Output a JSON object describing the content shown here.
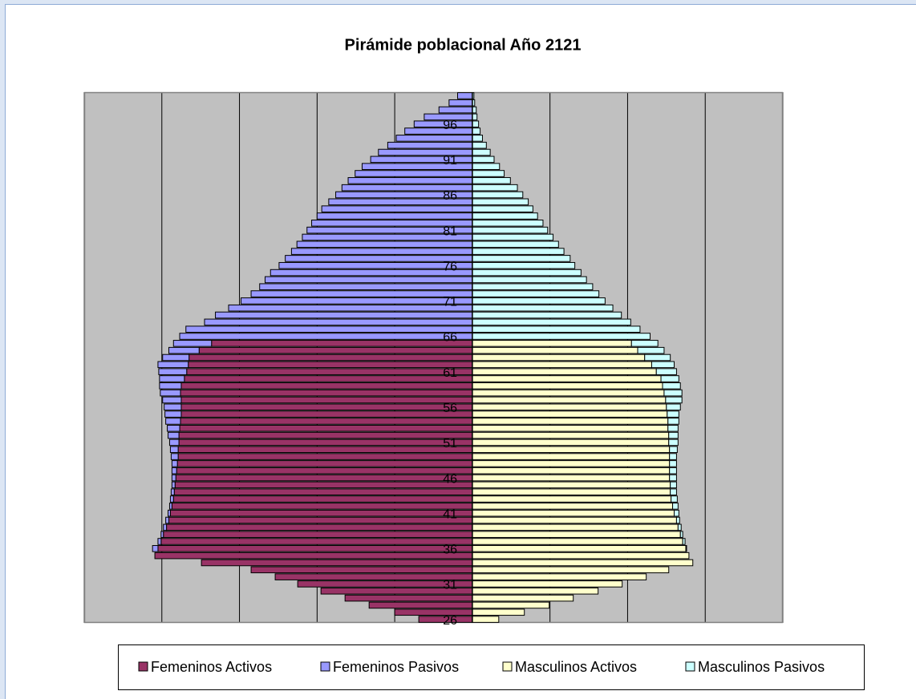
{
  "chart_data": {
    "type": "pyramid",
    "title": "Pirámide poblacional Año 2121",
    "categories": [
      "26",
      null,
      null,
      null,
      null,
      "31",
      null,
      null,
      null,
      null,
      "36",
      null,
      null,
      null,
      null,
      "41",
      null,
      null,
      null,
      null,
      "46",
      null,
      null,
      null,
      null,
      "51",
      null,
      null,
      null,
      null,
      "56",
      null,
      null,
      null,
      null,
      "61",
      null,
      null,
      null,
      null,
      "66",
      null,
      null,
      null,
      null,
      "71",
      null,
      null,
      null,
      null,
      "76",
      null,
      null,
      null,
      null,
      "81",
      null,
      null,
      null,
      null,
      "86",
      null,
      null,
      null,
      null,
      "91",
      null,
      null,
      null,
      null,
      "96",
      null,
      null,
      null,
      null
    ],
    "series": [
      {
        "name": "Femeninos Activos",
        "color": "#993366",
        "values": [
          -69,
          -100,
          -133,
          -164,
          -195,
          -225,
          -254,
          -285,
          -349,
          -409,
          -405,
          -401,
          -398,
          -394,
          -391,
          -389,
          -387,
          -385,
          -384,
          -383,
          -382,
          -381,
          -380,
          -379,
          -379,
          -378,
          -378,
          -377,
          -376,
          -375,
          -375,
          -375,
          -376,
          -375,
          -371,
          -368,
          -366,
          -365,
          -352,
          -336,
          0,
          0,
          0,
          0,
          0,
          0,
          0,
          0,
          0,
          0,
          0,
          0,
          0,
          0,
          0,
          0,
          0,
          0,
          0,
          0,
          0,
          0,
          0,
          0,
          0,
          0,
          0,
          0,
          0,
          0,
          0,
          0,
          0,
          0,
          0
        ]
      },
      {
        "name": "Femeninos Pasivos",
        "color": "#9999ff",
        "values": [
          0,
          0,
          0,
          0,
          0,
          0,
          0,
          0,
          0,
          0,
          -7,
          -4,
          -3,
          -4,
          -4,
          -3,
          -3,
          -4,
          -4,
          -4,
          -5,
          -6,
          -7,
          -9,
          -10,
          -12,
          -14,
          -16,
          -19,
          -21,
          -22,
          -24,
          -26,
          -28,
          -32,
          -36,
          -39,
          -34,
          -39,
          -49,
          -377,
          -369,
          -345,
          -331,
          -314,
          -298,
          -285,
          -274,
          -267,
          -260,
          -249,
          -241,
          -233,
          -226,
          -219,
          -213,
          -207,
          -200,
          -194,
          -185,
          -176,
          -168,
          -160,
          -151,
          -142,
          -131,
          -121,
          -109,
          -98,
          -87,
          -75,
          -62,
          -43,
          -30,
          -19
        ]
      },
      {
        "name": "Masculinos Activos",
        "color": "#ffffcc",
        "values": [
          34,
          67,
          99,
          130,
          162,
          193,
          224,
          253,
          284,
          279,
          275,
          271,
          268,
          265,
          263,
          260,
          258,
          256,
          255,
          255,
          254,
          254,
          254,
          254,
          254,
          253,
          253,
          252,
          252,
          251,
          250,
          249,
          247,
          245,
          243,
          237,
          231,
          222,
          213,
          205,
          0,
          0,
          0,
          0,
          0,
          0,
          0,
          0,
          0,
          0,
          0,
          0,
          0,
          0,
          0,
          0,
          0,
          0,
          0,
          0,
          0,
          0,
          0,
          0,
          0,
          0,
          0,
          0,
          0,
          0,
          0,
          0,
          0,
          0,
          0
        ]
      },
      {
        "name": "Masculinos Pasivos",
        "color": "#ccffff",
        "values": [
          0,
          0,
          0,
          0,
          0,
          0,
          0,
          0,
          0,
          0,
          1,
          3,
          3,
          4,
          4,
          6,
          7,
          8,
          8,
          8,
          9,
          9,
          9,
          9,
          10,
          12,
          12,
          13,
          14,
          15,
          18,
          21,
          23,
          23,
          23,
          26,
          29,
          33,
          34,
          34,
          229,
          216,
          204,
          192,
          181,
          171,
          163,
          155,
          147,
          140,
          132,
          126,
          118,
          111,
          104,
          97,
          91,
          84,
          78,
          72,
          65,
          58,
          49,
          41,
          35,
          28,
          23,
          18,
          13,
          10,
          8,
          6,
          5,
          3,
          2
        ]
      }
    ],
    "xlim": [
      -500,
      400
    ],
    "xticks": [
      -500,
      -400,
      -300,
      -200,
      -100,
      0,
      100,
      200,
      300,
      400
    ],
    "x_tick_labels": false,
    "grid": true,
    "legend": "bottom"
  }
}
